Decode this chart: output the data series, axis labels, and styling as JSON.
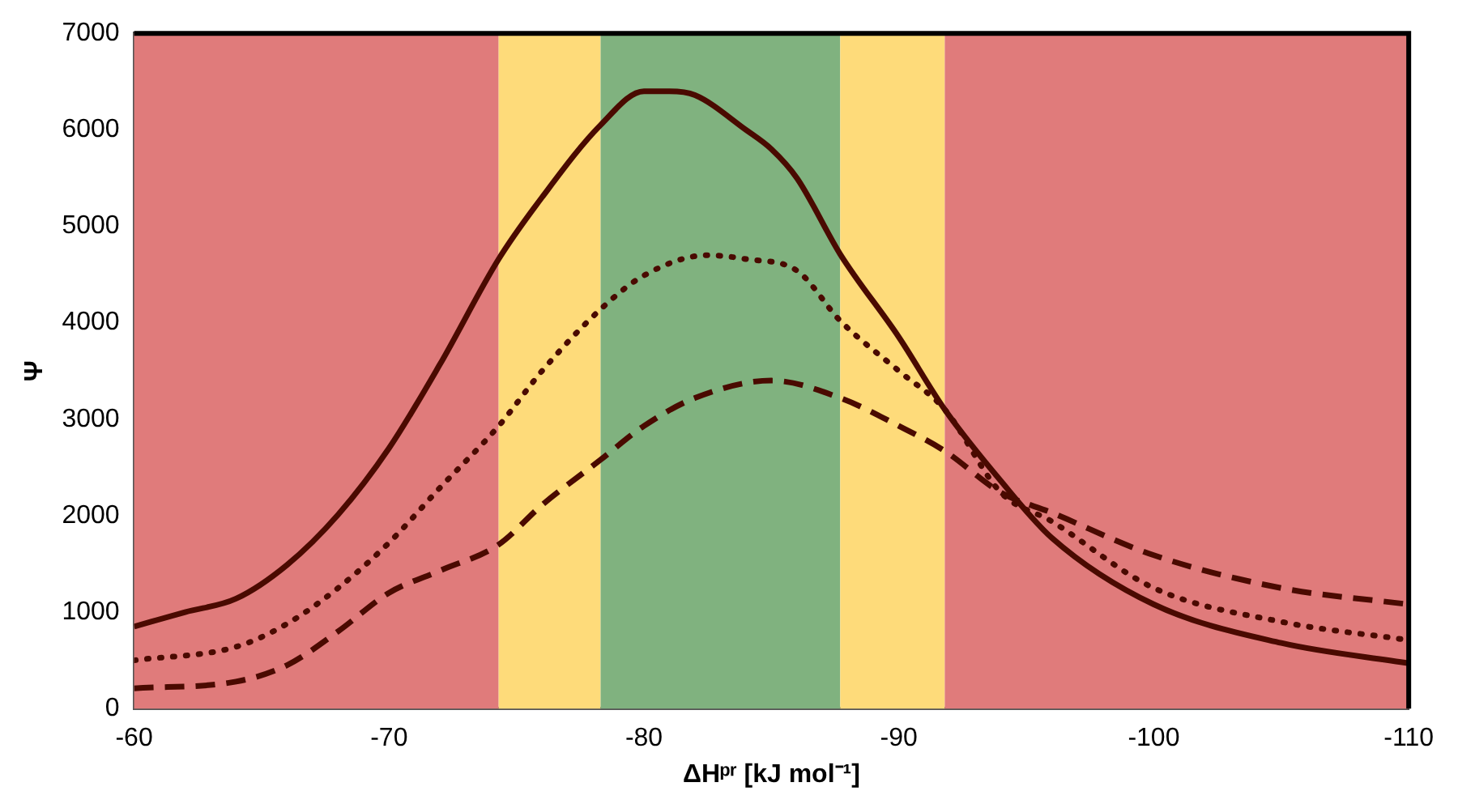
{
  "chart_data": {
    "type": "line",
    "xlabel": "ΔHᵖʳ [kJ mol⁻¹]",
    "ylabel": "Ψ",
    "xlim": [
      -60,
      -110
    ],
    "xticks": [
      -60,
      -70,
      -80,
      -90,
      -100,
      -110
    ],
    "ylim": [
      0,
      7000
    ],
    "yticks": [
      0,
      1000,
      2000,
      3000,
      4000,
      5000,
      6000,
      7000
    ],
    "grid": false,
    "legend": false,
    "marker": "none",
    "series": [
      {
        "color": "#4a0a00",
        "line_style": "solid",
        "x": [
          -60,
          -62,
          -64,
          -66,
          -68,
          -70,
          -72,
          -74.3,
          -76,
          -78.3,
          -80,
          -81,
          -82,
          -84,
          -85,
          -86,
          -87.7,
          -90,
          -91.8,
          -94,
          -96,
          -100,
          -105,
          -110
        ],
        "values": [
          850,
          1000,
          1140,
          1490,
          2010,
          2700,
          3570,
          4660,
          5300,
          6050,
          6400,
          6400,
          6360,
          6000,
          5800,
          5500,
          4710,
          3850,
          3100,
          2360,
          1770,
          1080,
          680,
          470
        ]
      },
      {
        "color": "#4a0a00",
        "line_style": "dotted",
        "x": [
          -60,
          -64,
          -66,
          -68,
          -70,
          -72,
          -74.3,
          -76,
          -78.3,
          -80,
          -82.5,
          -84,
          -86,
          -87.7,
          -90,
          -91.8,
          -94,
          -96,
          -100,
          -105,
          -110
        ],
        "values": [
          500,
          640,
          880,
          1250,
          1720,
          2290,
          2930,
          3500,
          4140,
          4490,
          4700,
          4660,
          4540,
          4020,
          3500,
          3100,
          2240,
          1940,
          1250,
          900,
          710
        ]
      },
      {
        "color": "#4a0a00",
        "line_style": "dashed",
        "x": [
          -60,
          -64,
          -66,
          -68,
          -70,
          -72,
          -74.3,
          -76,
          -78.3,
          -80,
          -82,
          -85,
          -87.7,
          -90,
          -91.8,
          -94,
          -96,
          -100,
          -105,
          -110
        ],
        "values": [
          210,
          280,
          450,
          800,
          1200,
          1430,
          1700,
          2110,
          2580,
          2930,
          3220,
          3400,
          3220,
          2930,
          2670,
          2240,
          2030,
          1590,
          1250,
          1080
        ]
      }
    ],
    "bands": [
      {
        "axis": "x",
        "from": -60,
        "to": -74.3,
        "color": "#e07b7b"
      },
      {
        "axis": "x",
        "from": -74.3,
        "to": -78.3,
        "color": "#fedb7a"
      },
      {
        "axis": "x",
        "from": -78.3,
        "to": -87.7,
        "color": "#80b27f"
      },
      {
        "axis": "x",
        "from": -87.7,
        "to": -91.8,
        "color": "#fedb7a"
      },
      {
        "axis": "x",
        "from": -91.8,
        "to": -110,
        "color": "#e07b7b"
      }
    ]
  }
}
